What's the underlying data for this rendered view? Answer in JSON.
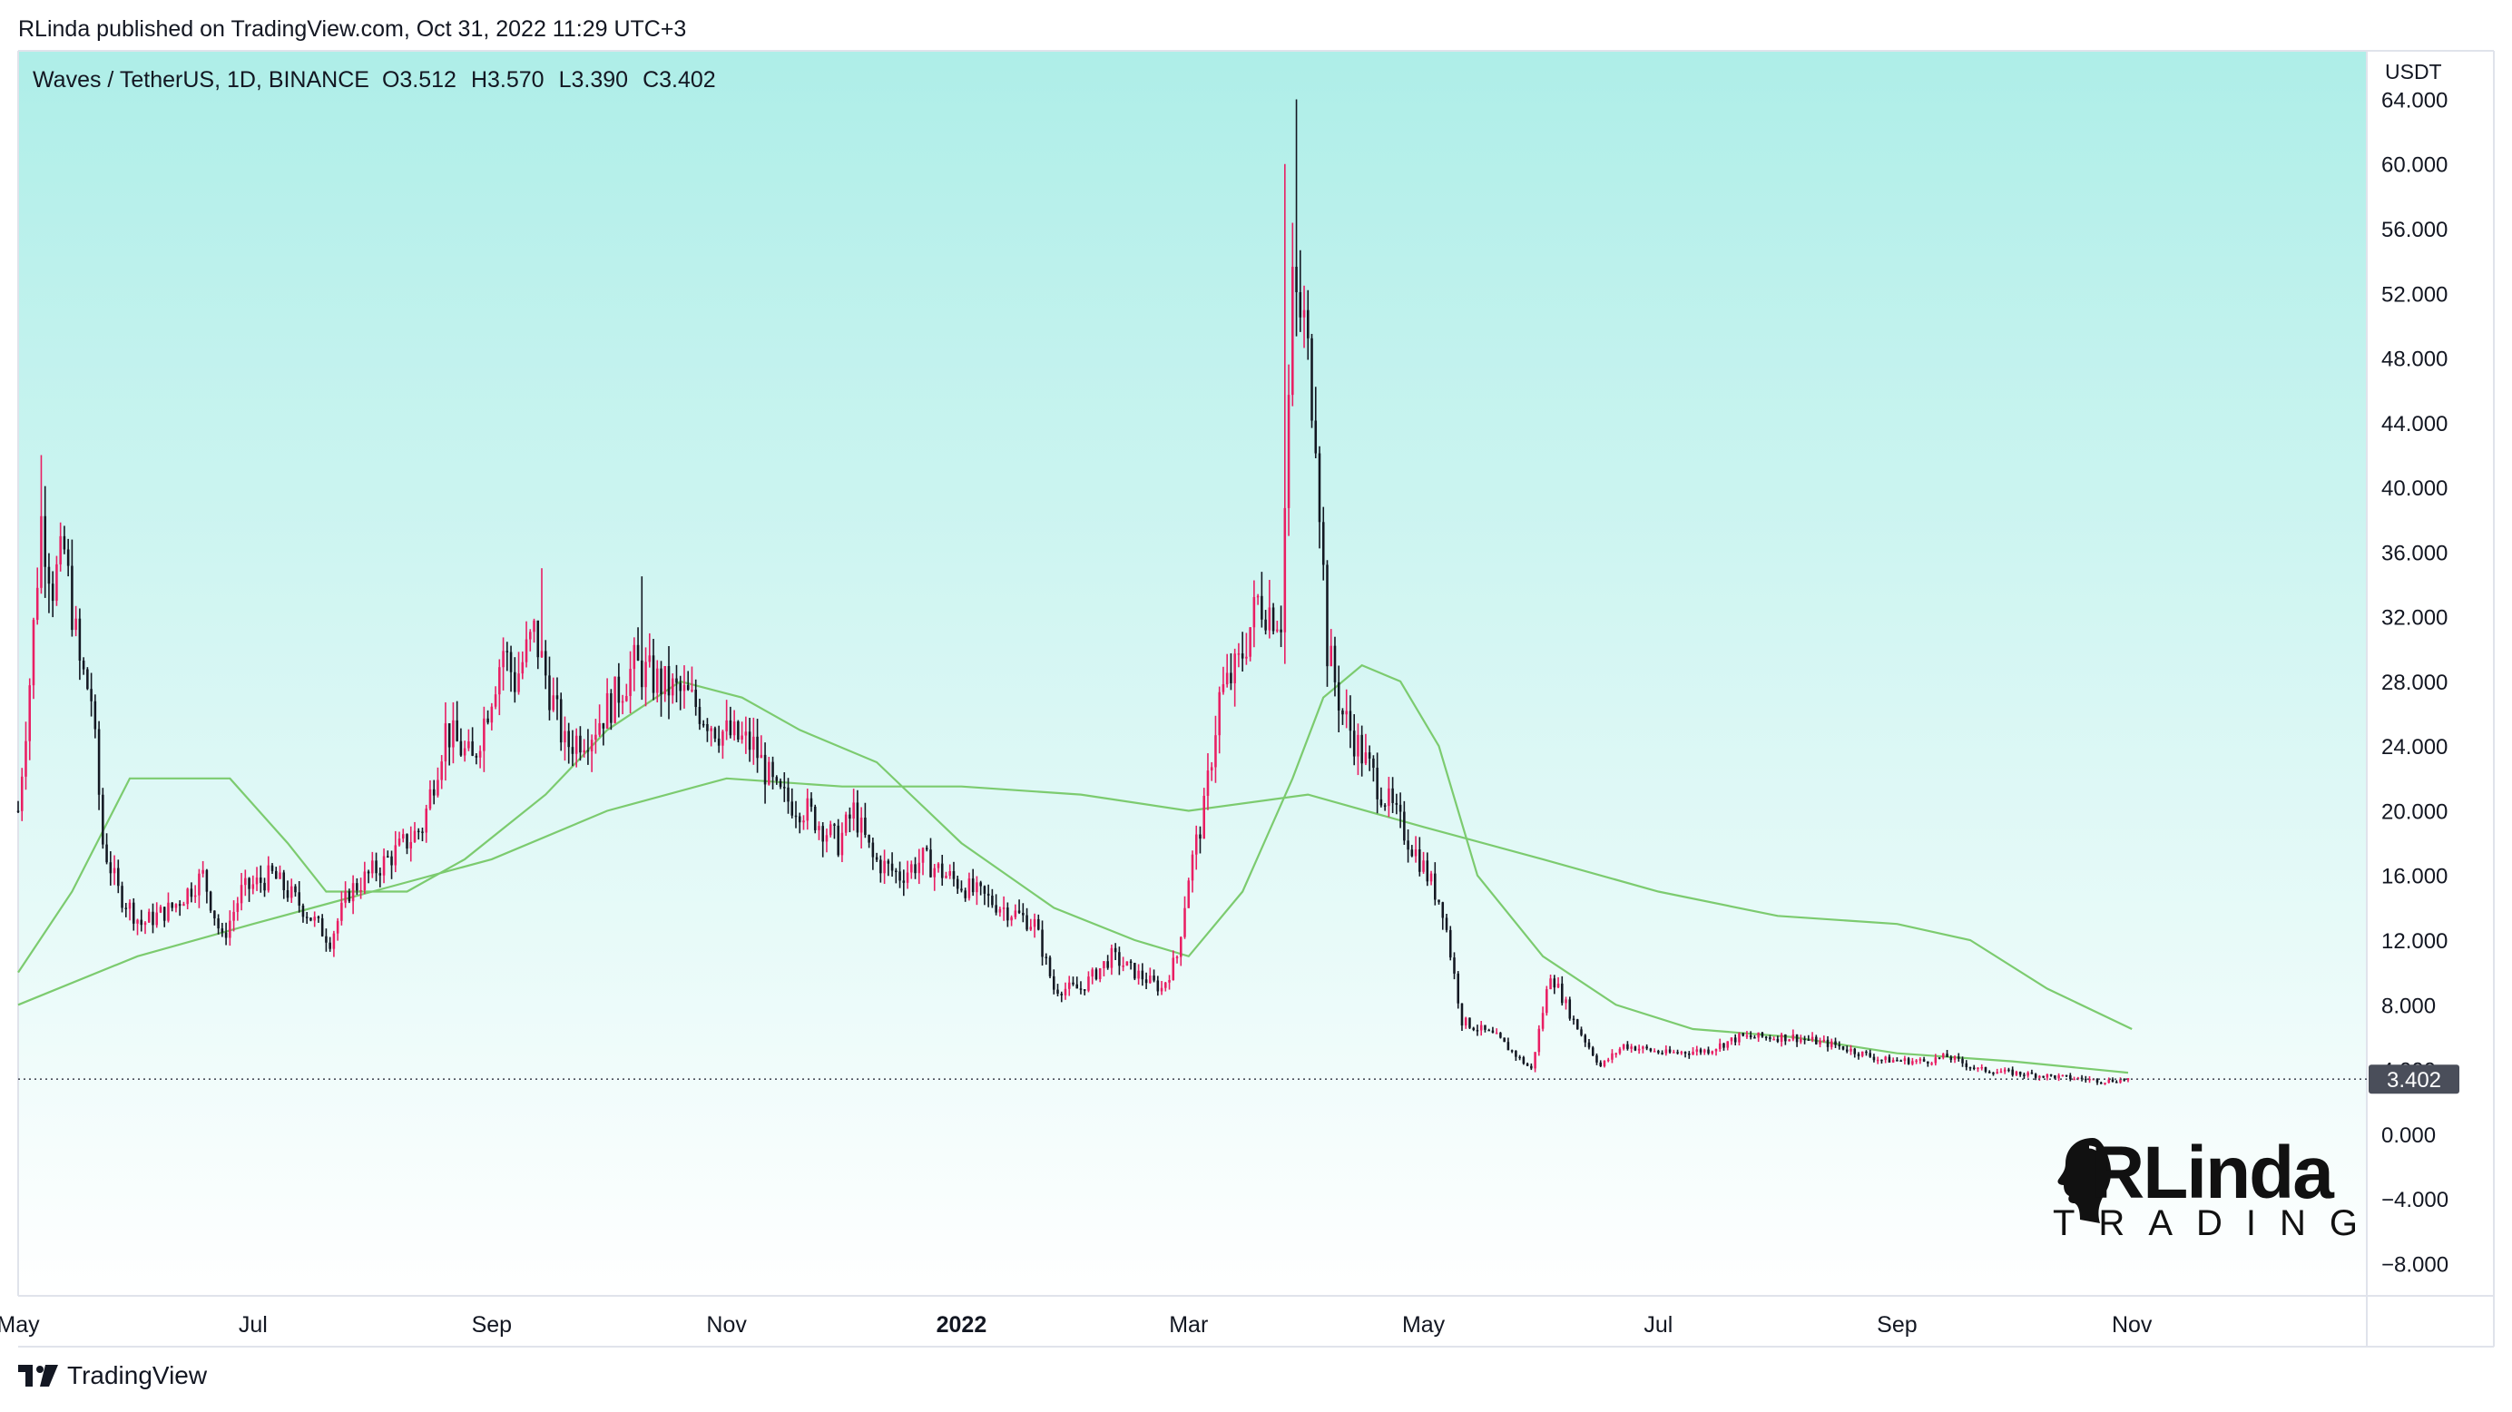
{
  "header": {
    "published_by": "RLinda published on TradingView.com, Oct 31, 2022 11:29 UTC+3"
  },
  "legend": {
    "symbol": "Waves / TetherUS, 1D, BINANCE",
    "open": "O3.512",
    "high": "H3.570",
    "low": "L3.390",
    "close": "C3.402"
  },
  "footer": {
    "brand": "TradingView",
    "brand_icon": "tradingview-logo-icon"
  },
  "watermark": {
    "main": "RLinda",
    "sub": "TRADING"
  },
  "colors": {
    "bg_top": "#aeeee8",
    "bg_bottom": "#ffffff",
    "candle_up": "#e91e63",
    "candle_down": "#131722",
    "ma": "#7ccb6f",
    "last_price_bg": "#4a4e5a"
  },
  "chart_data": {
    "type": "candlestick",
    "title": "Waves / TetherUS, 1D, BINANCE",
    "y_axis_unit": "USDT",
    "y_ticks": [
      "64.000",
      "60.000",
      "56.000",
      "52.000",
      "48.000",
      "44.000",
      "40.000",
      "36.000",
      "32.000",
      "28.000",
      "24.000",
      "20.000",
      "16.000",
      "12.000",
      "8.000",
      "4.000",
      "0.000",
      "−4.000",
      "−8.000"
    ],
    "y_tick_values": [
      64,
      60,
      56,
      52,
      48,
      44,
      40,
      36,
      32,
      28,
      24,
      20,
      16,
      12,
      8,
      4,
      0,
      -4,
      -8
    ],
    "ylim": [
      -10,
      67
    ],
    "x_ticks": [
      {
        "label": "May",
        "date": "2021-05-01",
        "bold": false
      },
      {
        "label": "Jul",
        "date": "2021-07-01",
        "bold": false
      },
      {
        "label": "Sep",
        "date": "2021-09-01",
        "bold": false
      },
      {
        "label": "Nov",
        "date": "2021-11-01",
        "bold": false
      },
      {
        "label": "2022",
        "date": "2022-01-01",
        "bold": true
      },
      {
        "label": "Mar",
        "date": "2022-03-01",
        "bold": false
      },
      {
        "label": "May",
        "date": "2022-05-01",
        "bold": false
      },
      {
        "label": "Jul",
        "date": "2022-07-01",
        "bold": false
      },
      {
        "label": "Sep",
        "date": "2022-09-01",
        "bold": false
      },
      {
        "label": "Nov",
        "date": "2022-11-01",
        "bold": false
      }
    ],
    "xlim": [
      "2021-05-01",
      "2023-01-01"
    ],
    "last_price": 3.402,
    "last_price_label": "3.402",
    "grid": false,
    "price_path": [
      {
        "date": "2021-05-01",
        "close": 20
      },
      {
        "date": "2021-05-04",
        "close": 28
      },
      {
        "date": "2021-05-07",
        "close": 38
      },
      {
        "date": "2021-05-10",
        "close": 34
      },
      {
        "date": "2021-05-13",
        "close": 36
      },
      {
        "date": "2021-05-17",
        "close": 29
      },
      {
        "date": "2021-05-20",
        "close": 27
      },
      {
        "date": "2021-05-23",
        "close": 18
      },
      {
        "date": "2021-05-27",
        "close": 15
      },
      {
        "date": "2021-06-02",
        "close": 13
      },
      {
        "date": "2021-06-10",
        "close": 14
      },
      {
        "date": "2021-06-18",
        "close": 16
      },
      {
        "date": "2021-06-23",
        "close": 12
      },
      {
        "date": "2021-06-28",
        "close": 15
      },
      {
        "date": "2021-07-06",
        "close": 16
      },
      {
        "date": "2021-07-14",
        "close": 14
      },
      {
        "date": "2021-07-21",
        "close": 12
      },
      {
        "date": "2021-07-26",
        "close": 15
      },
      {
        "date": "2021-08-05",
        "close": 17
      },
      {
        "date": "2021-08-14",
        "close": 19
      },
      {
        "date": "2021-08-20",
        "close": 25
      },
      {
        "date": "2021-08-27",
        "close": 23
      },
      {
        "date": "2021-09-04",
        "close": 30
      },
      {
        "date": "2021-09-07",
        "close": 28
      },
      {
        "date": "2021-09-12",
        "close": 31
      },
      {
        "date": "2021-09-20",
        "close": 24
      },
      {
        "date": "2021-09-27",
        "close": 25
      },
      {
        "date": "2021-10-03",
        "close": 27
      },
      {
        "date": "2021-10-08",
        "close": 29
      },
      {
        "date": "2021-10-14",
        "close": 28
      },
      {
        "date": "2021-10-22",
        "close": 27
      },
      {
        "date": "2021-10-30",
        "close": 25
      },
      {
        "date": "2021-11-08",
        "close": 24
      },
      {
        "date": "2021-11-14",
        "close": 21
      },
      {
        "date": "2021-11-22",
        "close": 20
      },
      {
        "date": "2021-11-30",
        "close": 18
      },
      {
        "date": "2021-12-04",
        "close": 20
      },
      {
        "date": "2021-12-09",
        "close": 17
      },
      {
        "date": "2021-12-16",
        "close": 16
      },
      {
        "date": "2021-12-22",
        "close": 17
      },
      {
        "date": "2021-12-28",
        "close": 16
      },
      {
        "date": "2022-01-04",
        "close": 15
      },
      {
        "date": "2022-01-12",
        "close": 14
      },
      {
        "date": "2022-01-20",
        "close": 13
      },
      {
        "date": "2022-01-25",
        "close": 9
      },
      {
        "date": "2022-02-01",
        "close": 9
      },
      {
        "date": "2022-02-09",
        "close": 11
      },
      {
        "date": "2022-02-15",
        "close": 10
      },
      {
        "date": "2022-02-22",
        "close": 9
      },
      {
        "date": "2022-02-26",
        "close": 11
      },
      {
        "date": "2022-03-01",
        "close": 16
      },
      {
        "date": "2022-03-05",
        "close": 20
      },
      {
        "date": "2022-03-09",
        "close": 27
      },
      {
        "date": "2022-03-14",
        "close": 29
      },
      {
        "date": "2022-03-19",
        "close": 33
      },
      {
        "date": "2022-03-25",
        "close": 32
      },
      {
        "date": "2022-03-28",
        "close": 52
      },
      {
        "date": "2022-03-31",
        "close": 50
      },
      {
        "date": "2022-04-03",
        "close": 44
      },
      {
        "date": "2022-04-06",
        "close": 30
      },
      {
        "date": "2022-04-10",
        "close": 26
      },
      {
        "date": "2022-04-16",
        "close": 23
      },
      {
        "date": "2022-04-23",
        "close": 20
      },
      {
        "date": "2022-04-30",
        "close": 17
      },
      {
        "date": "2022-05-06",
        "close": 14
      },
      {
        "date": "2022-05-11",
        "close": 7
      },
      {
        "date": "2022-05-20",
        "close": 6
      },
      {
        "date": "2022-05-29",
        "close": 4
      },
      {
        "date": "2022-06-03",
        "close": 10
      },
      {
        "date": "2022-06-09",
        "close": 7
      },
      {
        "date": "2022-06-16",
        "close": 4.2
      },
      {
        "date": "2022-06-22",
        "close": 5.5
      },
      {
        "date": "2022-07-03",
        "close": 5
      },
      {
        "date": "2022-07-14",
        "close": 5.2
      },
      {
        "date": "2022-07-22",
        "close": 6
      },
      {
        "date": "2022-08-05",
        "close": 6
      },
      {
        "date": "2022-08-16",
        "close": 5.5
      },
      {
        "date": "2022-08-28",
        "close": 4.6
      },
      {
        "date": "2022-09-08",
        "close": 4.5
      },
      {
        "date": "2022-09-14",
        "close": 4.8
      },
      {
        "date": "2022-09-22",
        "close": 4.0
      },
      {
        "date": "2022-10-05",
        "close": 3.7
      },
      {
        "date": "2022-10-15",
        "close": 3.5
      },
      {
        "date": "2022-10-25",
        "close": 3.3
      },
      {
        "date": "2022-10-31",
        "close": 3.4
      }
    ],
    "extreme_wicks": [
      {
        "date": "2021-05-07",
        "high": 42
      },
      {
        "date": "2021-09-14",
        "high": 35
      },
      {
        "date": "2021-10-10",
        "high": 34.5
      },
      {
        "date": "2022-03-29",
        "high": 64
      },
      {
        "date": "2022-03-26",
        "high": 60
      }
    ],
    "series": [
      {
        "name": "MA short",
        "points": [
          {
            "date": "2021-05-01",
            "value": 10
          },
          {
            "date": "2021-05-15",
            "value": 15
          },
          {
            "date": "2021-05-30",
            "value": 22
          },
          {
            "date": "2021-06-10",
            "value": 22
          },
          {
            "date": "2021-06-25",
            "value": 22
          },
          {
            "date": "2021-07-10",
            "value": 18
          },
          {
            "date": "2021-07-20",
            "value": 15
          },
          {
            "date": "2021-08-10",
            "value": 15
          },
          {
            "date": "2021-08-25",
            "value": 17
          },
          {
            "date": "2021-09-15",
            "value": 21
          },
          {
            "date": "2021-10-01",
            "value": 25
          },
          {
            "date": "2021-10-20",
            "value": 28
          },
          {
            "date": "2021-11-05",
            "value": 27
          },
          {
            "date": "2021-11-20",
            "value": 25
          },
          {
            "date": "2021-12-10",
            "value": 23
          },
          {
            "date": "2022-01-01",
            "value": 18
          },
          {
            "date": "2022-01-25",
            "value": 14
          },
          {
            "date": "2022-02-15",
            "value": 12
          },
          {
            "date": "2022-03-01",
            "value": 11
          },
          {
            "date": "2022-03-15",
            "value": 15
          },
          {
            "date": "2022-03-28",
            "value": 22
          },
          {
            "date": "2022-04-05",
            "value": 27
          },
          {
            "date": "2022-04-15",
            "value": 29
          },
          {
            "date": "2022-04-25",
            "value": 28
          },
          {
            "date": "2022-05-05",
            "value": 24
          },
          {
            "date": "2022-05-15",
            "value": 16
          },
          {
            "date": "2022-06-01",
            "value": 11
          },
          {
            "date": "2022-06-20",
            "value": 8
          },
          {
            "date": "2022-07-10",
            "value": 6.5
          },
          {
            "date": "2022-08-05",
            "value": 6
          },
          {
            "date": "2022-09-01",
            "value": 5
          },
          {
            "date": "2022-10-01",
            "value": 4.5
          },
          {
            "date": "2022-10-31",
            "value": 3.8
          }
        ]
      },
      {
        "name": "MA long",
        "points": [
          {
            "date": "2021-05-01",
            "value": 8
          },
          {
            "date": "2021-06-01",
            "value": 11
          },
          {
            "date": "2021-07-01",
            "value": 13
          },
          {
            "date": "2021-08-01",
            "value": 15
          },
          {
            "date": "2021-09-01",
            "value": 17
          },
          {
            "date": "2021-10-01",
            "value": 20
          },
          {
            "date": "2021-11-01",
            "value": 22
          },
          {
            "date": "2021-12-01",
            "value": 21.5
          },
          {
            "date": "2022-01-01",
            "value": 21.5
          },
          {
            "date": "2022-02-01",
            "value": 21
          },
          {
            "date": "2022-03-01",
            "value": 20
          },
          {
            "date": "2022-04-01",
            "value": 21
          },
          {
            "date": "2022-05-01",
            "value": 19
          },
          {
            "date": "2022-06-01",
            "value": 17
          },
          {
            "date": "2022-07-01",
            "value": 15
          },
          {
            "date": "2022-08-01",
            "value": 13.5
          },
          {
            "date": "2022-09-01",
            "value": 13
          },
          {
            "date": "2022-09-20",
            "value": 12
          },
          {
            "date": "2022-10-10",
            "value": 9
          },
          {
            "date": "2022-11-01",
            "value": 6.5
          }
        ]
      }
    ]
  }
}
